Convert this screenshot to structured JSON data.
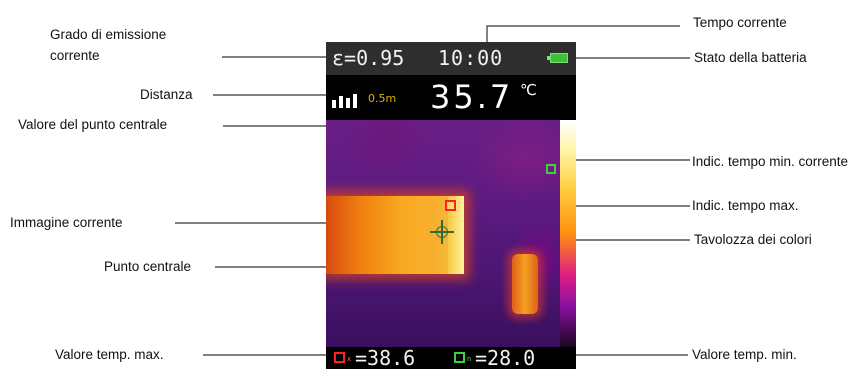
{
  "labels": {
    "emissivity": "Grado di emissione corrente",
    "current_time": "Tempo corrente",
    "battery_status": "Stato della batteria",
    "distance": "Distanza",
    "center_point_value": "Valore del punto centrale",
    "min_temp_indicator": "Indic. tempo min. corrente",
    "max_temp_indicator": "Indic. tempo max.",
    "current_image": "Immagine corrente",
    "color_palette": "Tavolozza dei colori",
    "center_point": "Punto centrale",
    "max_temp_value": "Valore temp. max.",
    "min_temp_value": "Valore temp. min."
  },
  "screen": {
    "emissivity": "ε=0.95",
    "time": "10:00",
    "distance": "0.5m",
    "center_value": "35.7",
    "unit": "℃",
    "max_sub": "x",
    "min_sub": "n",
    "max_value": "=38.6",
    "min_value": "=28.0"
  },
  "colors": {
    "status_bar": "#2e2e2e",
    "battery": "#3fbf3a",
    "max_marker": "#ff2020",
    "min_marker": "#3fd03f"
  }
}
